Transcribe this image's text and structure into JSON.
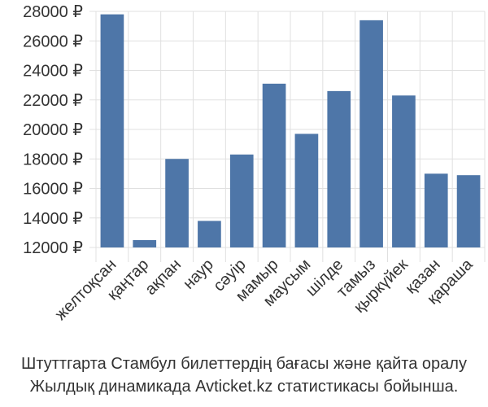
{
  "chart_data": {
    "type": "bar",
    "categories": [
      "желтоқсан",
      "қаңтар",
      "ақпан",
      "наур",
      "сәуір",
      "мамыр",
      "маусым",
      "шілде",
      "тамыз",
      "қыркүйек",
      "қазан",
      "қараша"
    ],
    "values": [
      27800,
      12500,
      18000,
      13800,
      18300,
      23100,
      19700,
      22600,
      27400,
      22300,
      17000,
      16900
    ],
    "y_ticks": [
      "12000 ₽",
      "14000 ₽",
      "16000 ₽",
      "18000 ₽",
      "20000 ₽",
      "22000 ₽",
      "24000 ₽",
      "26000 ₽",
      "28000 ₽"
    ],
    "y_tick_values": [
      12000,
      14000,
      16000,
      18000,
      20000,
      22000,
      24000,
      26000,
      28000
    ],
    "ylim": [
      12000,
      28000
    ],
    "grid": true,
    "legend": "none",
    "bar_color": "#4e76a8",
    "grid_color": "#e0e0e0",
    "caption_line1": "Штуттгарта Стамбул билеттердің бағасы және қайта оралу",
    "caption_line2": "Жылдық динамикада Avticket.kz статистикасы бойынша."
  }
}
